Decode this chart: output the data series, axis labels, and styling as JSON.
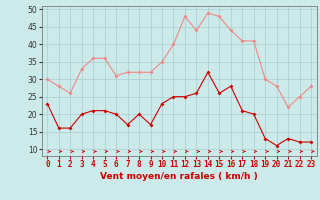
{
  "hours": [
    0,
    1,
    2,
    3,
    4,
    5,
    6,
    7,
    8,
    9,
    10,
    11,
    12,
    13,
    14,
    15,
    16,
    17,
    18,
    19,
    20,
    21,
    22,
    23
  ],
  "wind_avg": [
    23,
    16,
    16,
    20,
    21,
    21,
    20,
    17,
    20,
    17,
    23,
    25,
    25,
    26,
    32,
    26,
    28,
    21,
    20,
    13,
    11,
    13,
    12,
    12
  ],
  "wind_gust": [
    30,
    28,
    26,
    33,
    36,
    36,
    31,
    32,
    32,
    32,
    35,
    40,
    48,
    44,
    49,
    48,
    44,
    41,
    41,
    30,
    28,
    22,
    25,
    28
  ],
  "background_color": "#cdeaea",
  "grid_color": "#aacccc",
  "avg_color": "#cc0000",
  "gust_color": "#ee8888",
  "xlabel": "Vent moyen/en rafales ( km/h )",
  "ylim": [
    8,
    51
  ],
  "yticks": [
    10,
    15,
    20,
    25,
    30,
    35,
    40,
    45,
    50
  ],
  "label_fontsize": 6.5,
  "tick_fontsize": 5.5
}
